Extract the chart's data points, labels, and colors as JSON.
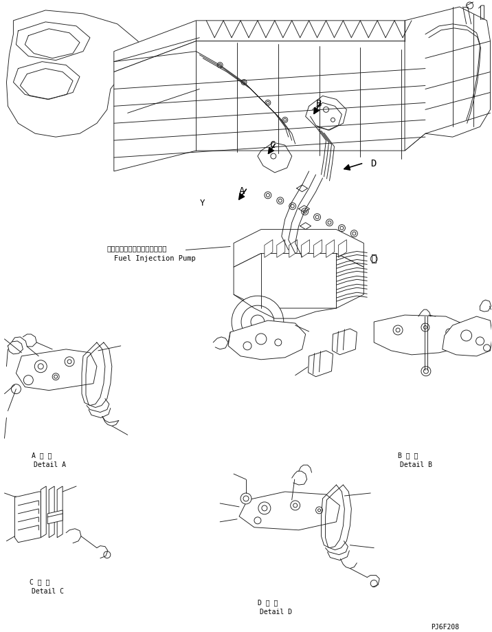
{
  "bg_color": "#ffffff",
  "line_color": "#1a1a1a",
  "fig_width": 7.16,
  "fig_height": 9.19,
  "dpi": 100,
  "label_A_jp": "A 詳 細",
  "label_A_en": "Detail A",
  "label_B_jp": "B 詳 細",
  "label_B_en": "Detail B",
  "label_C_jp": "C 詳 細",
  "label_C_en": "Detail C",
  "label_D_jp": "D 詳 細",
  "label_D_en": "Detail D",
  "pump_label_jp": "フェルインジェクションポンプ",
  "pump_label_en": "Fuel Injection Pump",
  "part_number": "PJ6F208",
  "font_size_label": 7,
  "font_size_partno": 7,
  "text_color": "#000000",
  "lw": 0.65
}
